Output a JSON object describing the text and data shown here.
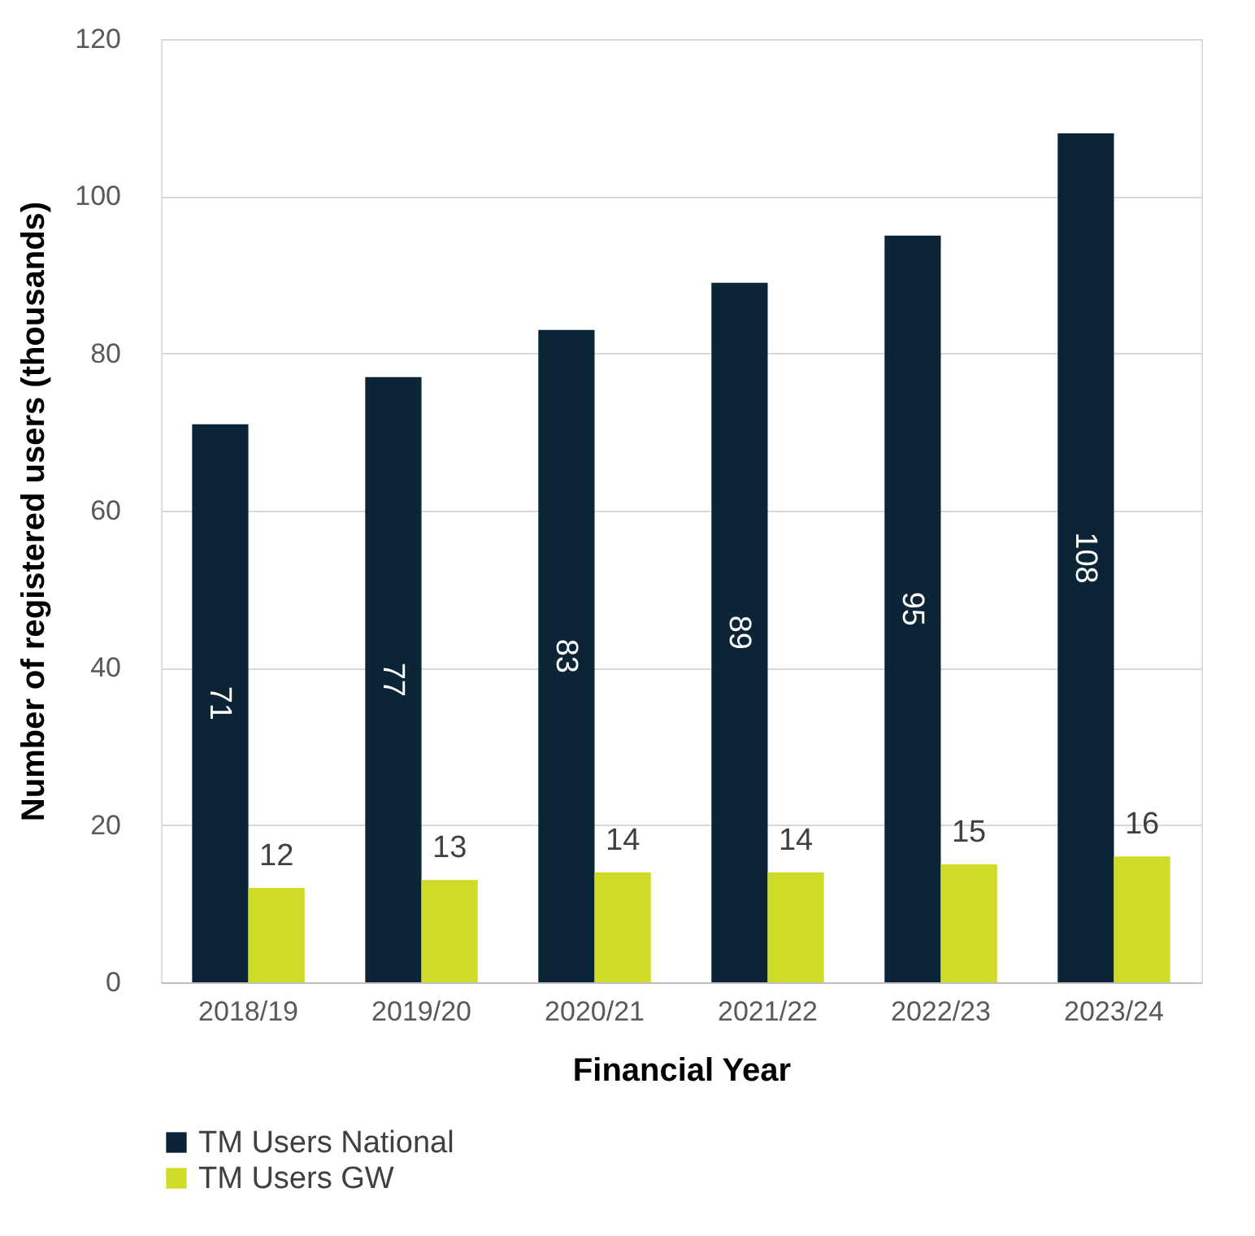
{
  "chart_data": {
    "type": "bar",
    "xlabel": "Financial Year",
    "ylabel": "Number of registered users    (thousands)",
    "categories": [
      "2018/19",
      "2019/20",
      "2020/21",
      "2021/22",
      "2022/23",
      "2023/24"
    ],
    "series": [
      {
        "name": "TM Users National",
        "color": "#0b2537",
        "values": [
          71,
          77,
          83,
          89,
          95,
          108
        ]
      },
      {
        "name": "TM Users GW",
        "color": "#cedc28",
        "values": [
          12,
          13,
          14,
          14,
          15,
          16
        ]
      }
    ],
    "ylim": [
      0,
      120
    ],
    "yticks": [
      0,
      20,
      40,
      60,
      80,
      100,
      120
    ],
    "grid": "y",
    "legend": "bottom",
    "data_labels": true
  }
}
